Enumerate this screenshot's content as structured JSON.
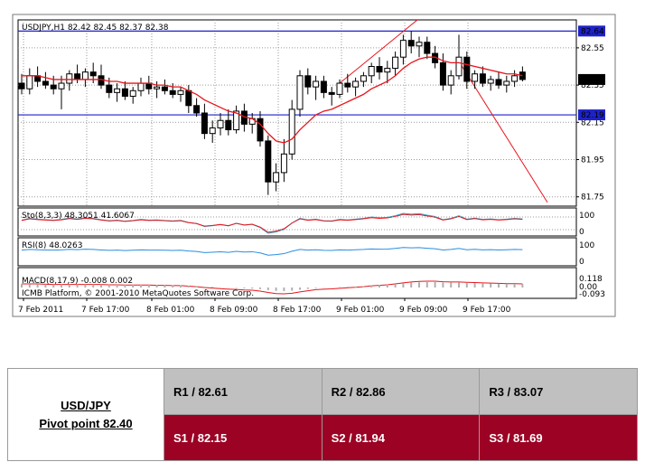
{
  "chart_data": {
    "type": "candlestick",
    "header": "USDJPY,H1  82.42 82.45 82.37 82.38",
    "price_axis": {
      "range": [
        81.7,
        82.7
      ],
      "ticks": [
        "82.55",
        "82.35",
        "82.15",
        "81.95",
        "81.75"
      ]
    },
    "levels": [
      {
        "value": 82.64,
        "label": "82.64",
        "color": "#1e22c8"
      },
      {
        "value": 82.38,
        "label": "82.38",
        "color": "#000000"
      },
      {
        "value": 82.19,
        "label": "82.19",
        "color": "#1e22c8"
      }
    ],
    "time_labels": [
      "7 Feb 2011",
      "7 Feb 17:00",
      "8 Feb 01:00",
      "8 Feb 09:00",
      "8 Feb 17:00",
      "9 Feb 01:00",
      "9 Feb 09:00",
      "9 Feb 17:00"
    ],
    "candles": [
      {
        "o": 82.36,
        "h": 82.41,
        "l": 82.3,
        "c": 82.33
      },
      {
        "o": 82.33,
        "h": 82.44,
        "l": 82.3,
        "c": 82.4
      },
      {
        "o": 82.4,
        "h": 82.45,
        "l": 82.34,
        "c": 82.37
      },
      {
        "o": 82.37,
        "h": 82.42,
        "l": 82.33,
        "c": 82.35
      },
      {
        "o": 82.35,
        "h": 82.4,
        "l": 82.3,
        "c": 82.33
      },
      {
        "o": 82.33,
        "h": 82.4,
        "l": 82.22,
        "c": 82.36
      },
      {
        "o": 82.36,
        "h": 82.43,
        "l": 82.32,
        "c": 82.41
      },
      {
        "o": 82.41,
        "h": 82.46,
        "l": 82.36,
        "c": 82.38
      },
      {
        "o": 82.38,
        "h": 82.44,
        "l": 82.34,
        "c": 82.42
      },
      {
        "o": 82.42,
        "h": 82.47,
        "l": 82.36,
        "c": 82.4
      },
      {
        "o": 82.4,
        "h": 82.46,
        "l": 82.33,
        "c": 82.35
      },
      {
        "o": 82.35,
        "h": 82.39,
        "l": 82.28,
        "c": 82.31
      },
      {
        "o": 82.31,
        "h": 82.36,
        "l": 82.26,
        "c": 82.33
      },
      {
        "o": 82.33,
        "h": 82.37,
        "l": 82.27,
        "c": 82.29
      },
      {
        "o": 82.29,
        "h": 82.34,
        "l": 82.25,
        "c": 82.32
      },
      {
        "o": 82.32,
        "h": 82.39,
        "l": 82.29,
        "c": 82.36
      },
      {
        "o": 82.36,
        "h": 82.4,
        "l": 82.3,
        "c": 82.33
      },
      {
        "o": 82.33,
        "h": 82.37,
        "l": 82.28,
        "c": 82.34
      },
      {
        "o": 82.34,
        "h": 82.38,
        "l": 82.3,
        "c": 82.32
      },
      {
        "o": 82.32,
        "h": 82.36,
        "l": 82.28,
        "c": 82.3
      },
      {
        "o": 82.3,
        "h": 82.34,
        "l": 82.26,
        "c": 82.32
      },
      {
        "o": 82.32,
        "h": 82.35,
        "l": 82.2,
        "c": 82.24
      },
      {
        "o": 82.24,
        "h": 82.28,
        "l": 82.18,
        "c": 82.2
      },
      {
        "o": 82.2,
        "h": 82.25,
        "l": 82.06,
        "c": 82.09
      },
      {
        "o": 82.09,
        "h": 82.16,
        "l": 82.04,
        "c": 82.12
      },
      {
        "o": 82.12,
        "h": 82.2,
        "l": 82.08,
        "c": 82.16
      },
      {
        "o": 82.16,
        "h": 82.22,
        "l": 82.08,
        "c": 82.11
      },
      {
        "o": 82.11,
        "h": 82.24,
        "l": 82.09,
        "c": 82.21
      },
      {
        "o": 82.21,
        "h": 82.25,
        "l": 82.1,
        "c": 82.14
      },
      {
        "o": 82.14,
        "h": 82.2,
        "l": 82.09,
        "c": 82.17
      },
      {
        "o": 82.17,
        "h": 82.21,
        "l": 82.02,
        "c": 82.05
      },
      {
        "o": 82.05,
        "h": 82.08,
        "l": 81.76,
        "c": 81.83
      },
      {
        "o": 81.83,
        "h": 81.93,
        "l": 81.78,
        "c": 81.88
      },
      {
        "o": 81.88,
        "h": 82.06,
        "l": 81.83,
        "c": 81.98
      },
      {
        "o": 81.98,
        "h": 82.27,
        "l": 81.95,
        "c": 82.22
      },
      {
        "o": 82.22,
        "h": 82.43,
        "l": 82.18,
        "c": 82.4
      },
      {
        "o": 82.4,
        "h": 82.44,
        "l": 82.3,
        "c": 82.34
      },
      {
        "o": 82.34,
        "h": 82.4,
        "l": 82.27,
        "c": 82.37
      },
      {
        "o": 82.37,
        "h": 82.4,
        "l": 82.28,
        "c": 82.31
      },
      {
        "o": 82.31,
        "h": 82.34,
        "l": 82.24,
        "c": 82.3
      },
      {
        "o": 82.3,
        "h": 82.38,
        "l": 82.28,
        "c": 82.36
      },
      {
        "o": 82.36,
        "h": 82.41,
        "l": 82.31,
        "c": 82.34
      },
      {
        "o": 82.34,
        "h": 82.39,
        "l": 82.29,
        "c": 82.37
      },
      {
        "o": 82.37,
        "h": 82.42,
        "l": 82.34,
        "c": 82.4
      },
      {
        "o": 82.4,
        "h": 82.47,
        "l": 82.36,
        "c": 82.45
      },
      {
        "o": 82.45,
        "h": 82.5,
        "l": 82.38,
        "c": 82.42
      },
      {
        "o": 82.42,
        "h": 82.48,
        "l": 82.36,
        "c": 82.44
      },
      {
        "o": 82.44,
        "h": 82.53,
        "l": 82.4,
        "c": 82.5
      },
      {
        "o": 82.5,
        "h": 82.62,
        "l": 82.46,
        "c": 82.59
      },
      {
        "o": 82.59,
        "h": 82.64,
        "l": 82.52,
        "c": 82.56
      },
      {
        "o": 82.56,
        "h": 82.61,
        "l": 82.5,
        "c": 82.58
      },
      {
        "o": 82.58,
        "h": 82.61,
        "l": 82.49,
        "c": 82.52
      },
      {
        "o": 82.52,
        "h": 82.56,
        "l": 82.44,
        "c": 82.47
      },
      {
        "o": 82.47,
        "h": 82.52,
        "l": 82.32,
        "c": 82.35
      },
      {
        "o": 82.35,
        "h": 82.43,
        "l": 82.3,
        "c": 82.4
      },
      {
        "o": 82.4,
        "h": 82.62,
        "l": 82.38,
        "c": 82.5
      },
      {
        "o": 82.5,
        "h": 82.53,
        "l": 82.33,
        "c": 82.37
      },
      {
        "o": 82.37,
        "h": 82.43,
        "l": 82.33,
        "c": 82.41
      },
      {
        "o": 82.41,
        "h": 82.45,
        "l": 82.34,
        "c": 82.36
      },
      {
        "o": 82.36,
        "h": 82.4,
        "l": 82.32,
        "c": 82.38
      },
      {
        "o": 82.38,
        "h": 82.42,
        "l": 82.33,
        "c": 82.35
      },
      {
        "o": 82.35,
        "h": 82.4,
        "l": 82.31,
        "c": 82.37
      },
      {
        "o": 82.37,
        "h": 82.43,
        "l": 82.34,
        "c": 82.4
      },
      {
        "o": 82.42,
        "h": 82.45,
        "l": 82.37,
        "c": 82.38
      }
    ],
    "moving_average": [
      82.4,
      82.4,
      82.4,
      82.39,
      82.38,
      82.38,
      82.38,
      82.38,
      82.38,
      82.38,
      82.38,
      82.37,
      82.37,
      82.36,
      82.36,
      82.36,
      82.36,
      82.35,
      82.35,
      82.34,
      82.34,
      82.32,
      82.3,
      82.27,
      82.25,
      82.23,
      82.21,
      82.2,
      82.18,
      82.17,
      82.14,
      82.09,
      82.05,
      82.04,
      82.06,
      82.11,
      82.15,
      82.19,
      82.21,
      82.22,
      82.24,
      82.26,
      82.28,
      82.3,
      82.33,
      82.35,
      82.37,
      82.4,
      82.44,
      82.47,
      82.49,
      82.5,
      82.5,
      82.48,
      82.47,
      82.47,
      82.46,
      82.45,
      82.44,
      82.43,
      82.42,
      82.41,
      82.41,
      82.4
    ],
    "indicators": {
      "stochastic": {
        "label": "Sto(8,3,3) 48.3051 41.6067",
        "scale": [
          "100",
          "0"
        ]
      },
      "rsi": {
        "label": "RSI(8) 48.0263",
        "scale": [
          "100",
          "0"
        ]
      },
      "macd": {
        "label": "MACD(8,17,9) -0.008 0.002",
        "scale": [
          "0.118",
          "0.00",
          "-0.093"
        ]
      }
    },
    "watermark": "ICMB Platform, © 2001-2010 MetaQuotes Software Corp."
  },
  "pivot_table": {
    "pair": "USD/JPY",
    "pivot": "Pivot point 82.40",
    "r1": "R1 / 82.61",
    "r2": "R2 / 82.86",
    "r3": "R3 / 83.07",
    "s1": "S1 / 82.15",
    "s2": "S2 / 81.94",
    "s3": "S3 / 81.69"
  },
  "colors": {
    "bull": "#ffffff",
    "bear": "#000000",
    "ma": "#e8141a",
    "level": "#1e22c8",
    "trend": "#e8141a",
    "s_row": "#9c0224",
    "r_row": "#c0c0c0"
  }
}
